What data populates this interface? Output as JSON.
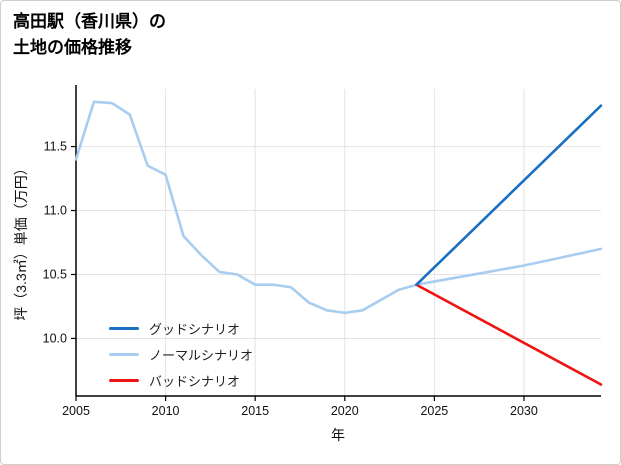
{
  "header": {
    "title_line1": "高田駅（香川県）の",
    "title_line2": "土地の価格推移"
  },
  "chart_data": {
    "type": "line",
    "title": "高田駅（香川県）の土地の価格推移",
    "xlabel": "年",
    "ylabel": "坪（3.3㎡）単価（万円）",
    "xlim": [
      2005,
      2034.3
    ],
    "ylim": [
      9.55,
      11.95
    ],
    "xticks": [
      2005,
      2010,
      2015,
      2020,
      2025,
      2030
    ],
    "yticks": [
      10.0,
      10.5,
      11.0,
      11.5
    ],
    "grid": true,
    "legend_position": "lower-left",
    "series": [
      {
        "name": "グッドシナリオ",
        "color": "#1b6fc2",
        "x": [
          2024,
          2034.3
        ],
        "values": [
          10.42,
          11.82
        ]
      },
      {
        "name": "ノーマルシナリオ",
        "color": "#a9cdf0",
        "x": [
          2005,
          2006,
          2007,
          2008,
          2009,
          2010,
          2011,
          2012,
          2013,
          2014,
          2015,
          2016,
          2017,
          2018,
          2019,
          2020,
          2021,
          2022,
          2023,
          2024,
          2026,
          2028,
          2030,
          2032,
          2034.3
        ],
        "values": [
          11.4,
          11.85,
          11.84,
          11.75,
          11.35,
          11.28,
          10.8,
          10.65,
          10.52,
          10.5,
          10.42,
          10.42,
          10.4,
          10.28,
          10.22,
          10.2,
          10.22,
          10.3,
          10.38,
          10.42,
          10.47,
          10.52,
          10.57,
          10.63,
          10.7
        ]
      },
      {
        "name": "バッドシナリオ",
        "color": "#ee1411",
        "x": [
          2024,
          2034.3
        ],
        "values": [
          10.42,
          9.64
        ]
      }
    ]
  },
  "style": {
    "grid_color": "#e4e4e4",
    "axis_color": "#000000",
    "tick_label_color": "#111111"
  }
}
